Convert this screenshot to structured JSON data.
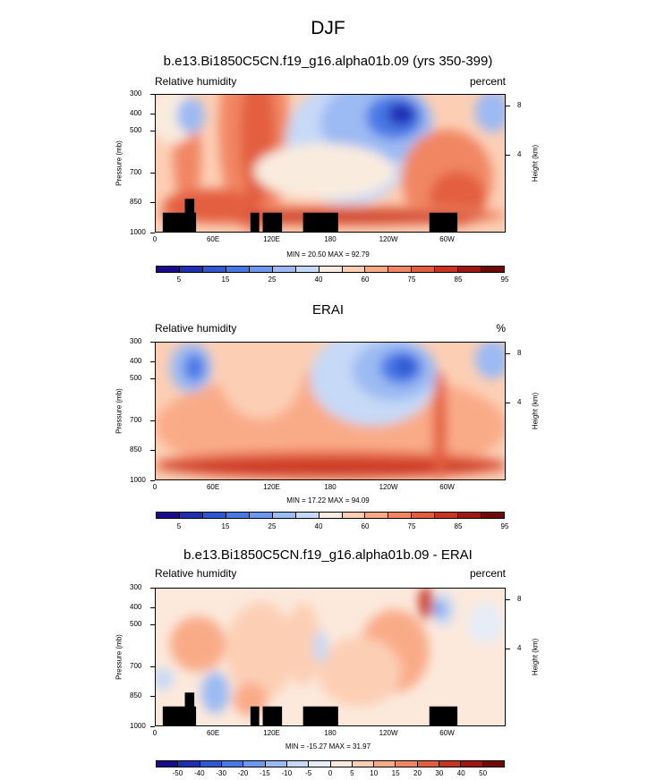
{
  "page_title": "DJF",
  "colors": {
    "abs": [
      "#1a0a8c",
      "#1f2fb4",
      "#2f58d2",
      "#4878e6",
      "#6e98ef",
      "#9cbaf3",
      "#c6d9f6",
      "#f9ecdf",
      "#fccfb5",
      "#f9ab88",
      "#f18663",
      "#e35e3f",
      "#c93421",
      "#a01612",
      "#6e0a08"
    ],
    "diff": [
      "#1a0a8c",
      "#1f2fb4",
      "#2f58d2",
      "#4878e6",
      "#6e98ef",
      "#9cbaf3",
      "#c6d9f6",
      "#e6edf7",
      "#fce9dc",
      "#fccfb5",
      "#f9ab88",
      "#f18663",
      "#e35e3f",
      "#c93421",
      "#a01612",
      "#6e0a08"
    ],
    "land": "#000000"
  },
  "chart_data": [
    {
      "type": "heatmap",
      "title": "b.e13.Bi1850C5CN.f19_g16.alpha01b.09 (yrs 350-399)",
      "left_label": "Relative humidity",
      "right_label": "percent",
      "ylabel": "Pressure (mb)",
      "ylabel_right": "Height (km)",
      "x_ticks": [
        "0",
        "60E",
        "120E",
        "180",
        "120W",
        "60W"
      ],
      "y_ticks": [
        "300",
        "400",
        "500",
        "700",
        "850",
        "1000"
      ],
      "y_right_ticks": [
        "8",
        "4"
      ],
      "stats": "MIN = 20.50  MAX = 92.79",
      "min": 20.5,
      "max": 92.79,
      "colorbar_labels": [
        "5",
        "15",
        "25",
        "40",
        "60",
        "75",
        "85",
        "95"
      ]
    },
    {
      "type": "heatmap",
      "title": "ERAI",
      "left_label": "Relative humidity",
      "right_label": "%",
      "ylabel": "Pressure (mb)",
      "ylabel_right": "Height (km)",
      "x_ticks": [
        "0",
        "60E",
        "120E",
        "180",
        "120W",
        "60W"
      ],
      "y_ticks": [
        "300",
        "400",
        "500",
        "700",
        "850",
        "1000"
      ],
      "y_right_ticks": [
        "8",
        "4"
      ],
      "stats": "MIN = 17.22  MAX = 94.09",
      "min": 17.22,
      "max": 94.09,
      "colorbar_labels": [
        "5",
        "15",
        "25",
        "40",
        "60",
        "75",
        "85",
        "95"
      ]
    },
    {
      "type": "heatmap",
      "title": "b.e13.Bi1850C5CN.f19_g16.alpha01b.09 - ERAI",
      "left_label": "Relative humidity",
      "right_label": "percent",
      "ylabel": "Pressure (mb)",
      "ylabel_right": "Height (km)",
      "x_ticks": [
        "0",
        "60E",
        "120E",
        "180",
        "120W",
        "60W"
      ],
      "y_ticks": [
        "300",
        "400",
        "500",
        "700",
        "850",
        "1000"
      ],
      "y_right_ticks": [
        "8",
        "4"
      ],
      "stats": "MIN = -15.27  MAX = 31.97",
      "min": -15.27,
      "max": 31.97,
      "colorbar_labels": [
        "-50",
        "-40",
        "-30",
        "-20",
        "-15",
        "-10",
        "-5",
        "0",
        "5",
        "10",
        "15",
        "20",
        "30",
        "40",
        "50"
      ]
    }
  ]
}
